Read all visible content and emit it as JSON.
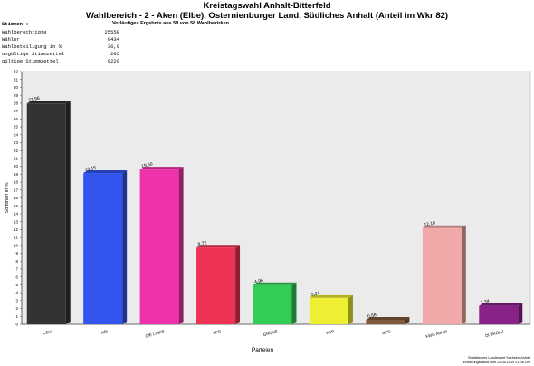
{
  "header": {
    "title": "Kreistagswahl Anhalt-Bitterfeld",
    "subtitle": "Wahlbereich  - 2 - Aken (Elbe), Osternienburger Land, Südliches Anhalt (Anteil im Wkr 82)",
    "result_note": "Vorläufiges Ergebnis aus 58 von 58 Wahlbezirken"
  },
  "stats": {
    "heading": "Stimmen  :",
    "rows": [
      {
        "label": "Wahlberechtigte",
        "value": "25550"
      },
      {
        "label": "Wähler",
        "value": "9434"
      },
      {
        "label": "Wahlbeteiligung in %",
        "value": "36,9"
      },
      {
        "label": "ungültige Stimmzettel",
        "value": "205"
      },
      {
        "label": "gültige Stimmzettel",
        "value": "9229"
      }
    ]
  },
  "footer": {
    "line1": "Statistisches Landesamt Sachsen-Anhalt",
    "line2": "Erfassungsstand vom 22.06.2019 21:06 Uhr"
  },
  "chart_data": {
    "type": "bar",
    "categories": [
      "CDU",
      "AfD",
      "DIE LINKE",
      "SPD",
      "GRÜNE",
      "FDP",
      "NPD",
      "FWG Anhalt",
      "Öl BRÜLÜ"
    ],
    "values": [
      27.96,
      19.15,
      19.6,
      9.72,
      4.96,
      3.34,
      0.58,
      12.18,
      2.34
    ],
    "value_labels": [
      "27,96",
      "19,15",
      "19,60",
      "9,72",
      "4,96",
      "3,34",
      "0,58",
      "12,18",
      "2,34"
    ],
    "colors": [
      "#333333",
      "#3355ee",
      "#ee33aa",
      "#ee3355",
      "#33cc55",
      "#eeee33",
      "#805a3a",
      "#f0a8a8",
      "#882288"
    ],
    "xlabel": "Parteien",
    "ylabel": "Stimmen in %",
    "ylim": [
      0,
      32
    ],
    "yticks": [
      0,
      1,
      2,
      3,
      4,
      5,
      6,
      7,
      8,
      9,
      10,
      11,
      12,
      13,
      14,
      15,
      16,
      17,
      18,
      19,
      20,
      21,
      22,
      23,
      24,
      25,
      26,
      27,
      28,
      29,
      30,
      31,
      32
    ],
    "grid": false,
    "legend": "none"
  }
}
